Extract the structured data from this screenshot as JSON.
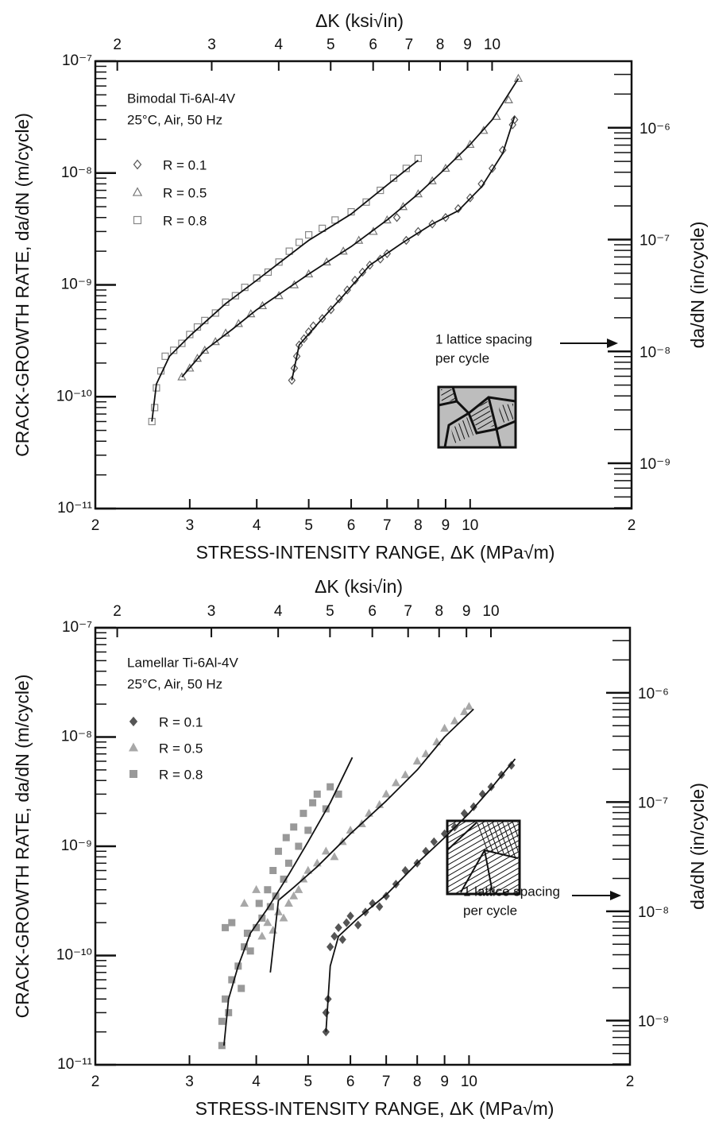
{
  "chart_data": [
    {
      "type": "scatter",
      "top_axis_label": "ΔK (ksi√in)",
      "xlabel": "STRESS-INTENSITY RANGE, ΔK (MPa√m)",
      "ylabel": "CRACK-GROWTH RATE, da/dN (m/cycle)",
      "y2label": "da/dN (in/cycle)",
      "xscale": "log",
      "yscale": "log",
      "xlim": [
        2,
        20
      ],
      "xticks": [
        2,
        3,
        4,
        5,
        6,
        7,
        8,
        9,
        10,
        {
          "value": 20,
          "label": "2"
        }
      ],
      "x2lim": [
        1.82,
        18.2
      ],
      "x2ticks": [
        2,
        3,
        4,
        5,
        6,
        7,
        8,
        9,
        10
      ],
      "ylim": [
        1e-11,
        1e-07
      ],
      "yticks": [
        {
          "value": 1e-11,
          "label": "10⁻¹¹"
        },
        {
          "value": 1e-10,
          "label": "10⁻¹⁰"
        },
        {
          "value": 1e-09,
          "label": "10⁻⁹"
        },
        {
          "value": 1e-08,
          "label": "10⁻⁸"
        },
        {
          "value": 1e-07,
          "label": "10⁻⁷"
        }
      ],
      "y2lim": [
        3.937e-10,
        3.937e-06
      ],
      "y2ticks": [
        {
          "value": 1e-09,
          "label": "10⁻⁹"
        },
        {
          "value": 1e-08,
          "label": "10⁻⁸"
        },
        {
          "value": 1e-07,
          "label": "10⁻⁷"
        },
        {
          "value": 1e-06,
          "label": "10⁻⁶"
        }
      ],
      "annotations": [
        "Bimodal Ti-6Al-4V",
        "25°C, Air, 50 Hz"
      ],
      "lattice_note": [
        "1 lattice spacing",
        "per cycle"
      ],
      "legend": "upper left",
      "series": [
        {
          "name": "R = 0.1",
          "marker": "diamond",
          "filled": false,
          "color": "#555555",
          "x": [
            4.65,
            4.7,
            4.75,
            4.8,
            4.9,
            5.0,
            5.1,
            5.3,
            5.5,
            5.7,
            5.9,
            6.1,
            6.3,
            6.5,
            6.8,
            7.0,
            7.3,
            7.6,
            8,
            8.5,
            9,
            9.5,
            10,
            10.5,
            11,
            11.5,
            12,
            12.1
          ],
          "values": [
            1.4e-10,
            1.8e-10,
            2.3e-10,
            2.9e-10,
            3.3e-10,
            3.8e-10,
            4.3e-10,
            5e-10,
            6e-10,
            7.5e-10,
            9e-10,
            1.1e-09,
            1.3e-09,
            1.5e-09,
            1.7e-09,
            1.9e-09,
            4e-09,
            2.5e-09,
            3e-09,
            3.5e-09,
            4e-09,
            4.8e-09,
            6e-09,
            8e-09,
            1.1e-08,
            1.6e-08,
            2.7e-08,
            3e-08
          ],
          "fit_x": [
            4.65,
            4.8,
            5.2,
            5.8,
            6.5,
            7.5,
            8.5,
            9.5,
            10.5,
            11.5,
            12.1
          ],
          "fit_values": [
            1.4e-10,
            2.9e-10,
            4.5e-10,
            8e-10,
            1.5e-09,
            2.4e-09,
            3.5e-09,
            4.6e-09,
            7.5e-09,
            1.5e-08,
            3.2e-08
          ]
        },
        {
          "name": "R = 0.5",
          "marker": "triangle",
          "filled": false,
          "color": "#777777",
          "x": [
            2.9,
            3.0,
            3.1,
            3.2,
            3.35,
            3.5,
            3.7,
            3.9,
            4.1,
            4.4,
            4.7,
            5.0,
            5.4,
            5.8,
            6.2,
            6.6,
            7.0,
            7.5,
            8,
            8.5,
            9,
            9.5,
            10,
            10.6,
            11.2,
            11.8,
            12.3
          ],
          "values": [
            1.5e-10,
            1.8e-10,
            2.2e-10,
            2.6e-10,
            3.1e-10,
            3.7e-10,
            4.5e-10,
            5.5e-10,
            6.5e-10,
            8e-10,
            1e-09,
            1.25e-09,
            1.6e-09,
            2e-09,
            2.5e-09,
            3e-09,
            3.8e-09,
            5e-09,
            6.5e-09,
            8.5e-09,
            1.1e-08,
            1.4e-08,
            1.8e-08,
            2.4e-08,
            3.2e-08,
            4.5e-08,
            7e-08
          ],
          "fit_x": [
            2.9,
            3.2,
            3.6,
            4,
            5,
            6,
            7,
            8,
            9,
            10,
            11,
            12.3
          ],
          "fit_values": [
            1.5e-10,
            2.6e-10,
            4e-10,
            6e-10,
            1.25e-09,
            2.2e-09,
            3.8e-09,
            6.5e-09,
            1.1e-08,
            1.8e-08,
            3e-08,
            7e-08
          ]
        },
        {
          "name": "R = 0.8",
          "marker": "square",
          "filled": false,
          "color": "#888888",
          "x": [
            2.55,
            2.58,
            2.6,
            2.65,
            2.7,
            2.8,
            2.9,
            3.0,
            3.1,
            3.2,
            3.35,
            3.5,
            3.65,
            3.8,
            4.0,
            4.2,
            4.4,
            4.6,
            4.8,
            5.0,
            5.3,
            5.6,
            6.0,
            6.4,
            6.8,
            7.2,
            7.6,
            8.0
          ],
          "values": [
            6e-11,
            8e-11,
            1.2e-10,
            1.7e-10,
            2.3e-10,
            2.6e-10,
            3e-10,
            3.6e-10,
            4.2e-10,
            4.8e-10,
            5.6e-10,
            7e-10,
            8e-10,
            9.5e-10,
            1.15e-09,
            1.3e-09,
            1.6e-09,
            2e-09,
            2.4e-09,
            2.8e-09,
            3.2e-09,
            3.8e-09,
            4.5e-09,
            5.5e-09,
            7e-09,
            9e-09,
            1.1e-08,
            1.35e-08
          ],
          "fit_x": [
            2.55,
            2.6,
            2.75,
            3,
            3.5,
            4,
            4.5,
            5,
            6,
            7,
            8
          ],
          "fit_values": [
            6e-11,
            1.3e-10,
            2.3e-10,
            3.5e-10,
            6.8e-10,
            1.1e-09,
            1.7e-09,
            2.5e-09,
            4.3e-09,
            7.8e-09,
            1.3e-08
          ]
        }
      ]
    },
    {
      "type": "scatter",
      "top_axis_label": "ΔK (ksi√in)",
      "xlabel": "STRESS-INTENSITY RANGE, ΔK (MPa√m)",
      "ylabel": "CRACK-GROWTH RATE, da/dN (m/cycle)",
      "y2label": "da/dN (in/cycle)",
      "xscale": "log",
      "yscale": "log",
      "xlim": [
        2,
        20
      ],
      "xticks": [
        2,
        3,
        4,
        5,
        6,
        7,
        8,
        9,
        10,
        {
          "value": 20,
          "label": "2"
        }
      ],
      "x2lim": [
        1.82,
        18.2
      ],
      "x2ticks": [
        2,
        3,
        4,
        5,
        6,
        7,
        8,
        9,
        10
      ],
      "ylim": [
        1e-11,
        1e-07
      ],
      "yticks": [
        {
          "value": 1e-11,
          "label": "10⁻¹¹"
        },
        {
          "value": 1e-10,
          "label": "10⁻¹⁰"
        },
        {
          "value": 1e-09,
          "label": "10⁻⁹"
        },
        {
          "value": 1e-08,
          "label": "10⁻⁸"
        },
        {
          "value": 1e-07,
          "label": "10⁻⁷"
        }
      ],
      "y2lim": [
        3.937e-10,
        3.937e-06
      ],
      "y2ticks": [
        {
          "value": 1e-09,
          "label": "10⁻⁹"
        },
        {
          "value": 1e-08,
          "label": "10⁻⁸"
        },
        {
          "value": 1e-07,
          "label": "10⁻⁷"
        },
        {
          "value": 1e-06,
          "label": "10⁻⁶"
        }
      ],
      "annotations": [
        "Lamellar Ti-6Al-4V",
        "25°C, Air, 50 Hz"
      ],
      "lattice_note": [
        "1 lattice spacing",
        "per cycle"
      ],
      "legend": "upper left",
      "series": [
        {
          "name": "R = 0.1",
          "marker": "diamond",
          "filled": true,
          "color": "#555555",
          "x": [
            5.4,
            5.4,
            5.45,
            5.5,
            5.6,
            5.7,
            5.8,
            5.9,
            6.0,
            6.2,
            6.4,
            6.6,
            6.8,
            7.0,
            7.3,
            7.6,
            8.0,
            8.3,
            8.6,
            9.0,
            9.4,
            9.8,
            10.2,
            10.6,
            11.0,
            11.5,
            12.0
          ],
          "values": [
            2e-11,
            3e-11,
            4e-11,
            1.2e-10,
            1.5e-10,
            1.8e-10,
            1.4e-10,
            2e-10,
            2.3e-10,
            1.9e-10,
            2.5e-10,
            3e-10,
            2.8e-10,
            3.5e-10,
            4.5e-10,
            6e-10,
            7e-10,
            9e-10,
            1.1e-09,
            1.3e-09,
            1.5e-09,
            2e-09,
            2.3e-09,
            3e-09,
            3.5e-09,
            4.5e-09,
            5.5e-09
          ],
          "fit_x": [
            5.4,
            5.5,
            5.7,
            6.2,
            7,
            8,
            9,
            10,
            11,
            12.2
          ],
          "fit_values": [
            2e-11,
            8e-11,
            1.5e-10,
            2.2e-10,
            3.6e-10,
            7e-10,
            1.2e-09,
            2e-09,
            3.4e-09,
            6.3e-09
          ]
        },
        {
          "name": "R = 0.5",
          "marker": "triangle",
          "filled": true,
          "color": "#a8a8a8",
          "x": [
            3.8,
            4.0,
            4.1,
            4.2,
            4.3,
            4.4,
            4.5,
            4.6,
            4.7,
            4.8,
            4.9,
            5.0,
            5.2,
            5.4,
            5.6,
            5.8,
            6.0,
            6.3,
            6.5,
            6.8,
            7.0,
            7.3,
            7.6,
            8.0,
            8.3,
            8.7,
            9.0,
            9.4,
            9.8,
            10.0
          ],
          "values": [
            3e-10,
            4e-10,
            1.5e-10,
            2e-10,
            1.7e-10,
            2.5e-10,
            2.2e-10,
            3e-10,
            3.5e-10,
            4e-10,
            5e-10,
            6e-10,
            7e-10,
            9e-10,
            8e-10,
            1.1e-09,
            1.4e-09,
            1.6e-09,
            2e-09,
            2.4e-09,
            3e-09,
            3.8e-09,
            4.5e-09,
            6e-09,
            7e-09,
            9e-09,
            1.2e-08,
            1.4e-08,
            1.7e-08,
            1.9e-08
          ],
          "fit_x": [
            4.25,
            4.4,
            4.7,
            5.2,
            6,
            7,
            8,
            9,
            10.2
          ],
          "fit_values": [
            7e-11,
            3.2e-10,
            4.2e-10,
            6.5e-10,
            1.3e-09,
            2.6e-09,
            5e-09,
            1e-08,
            1.8e-08
          ]
        },
        {
          "name": "R = 0.8",
          "marker": "square",
          "filled": true,
          "color": "#999999",
          "x": [
            3.45,
            3.45,
            3.5,
            3.55,
            3.6,
            3.7,
            3.75,
            3.8,
            3.85,
            3.9,
            4.0,
            4.05,
            4.1,
            3.5,
            3.6,
            4.2,
            4.25,
            4.3,
            4.35,
            4.4,
            4.5,
            4.55,
            4.6,
            4.7,
            4.8,
            4.9,
            5.0,
            5.1,
            5.2,
            5.4,
            5.5,
            5.7
          ],
          "values": [
            1.5e-11,
            2.5e-11,
            4e-11,
            3e-11,
            6e-11,
            8e-11,
            5e-11,
            1.2e-10,
            1.6e-10,
            1.1e-10,
            1.8e-10,
            3e-10,
            2.2e-10,
            1.8e-10,
            2e-10,
            4e-10,
            2.8e-10,
            6e-10,
            3.5e-10,
            9e-10,
            5e-10,
            1.2e-09,
            7e-10,
            1.5e-09,
            1e-09,
            2e-09,
            1.4e-09,
            2.5e-09,
            3e-09,
            2.2e-09,
            3.5e-09,
            3e-09
          ],
          "fit_x": [
            3.48,
            3.55,
            3.7,
            3.9,
            4.2,
            4.6,
            5,
            5.5,
            6.05
          ],
          "fit_values": [
            1.5e-11,
            4e-11,
            8e-11,
            1.6e-10,
            2.7e-10,
            5.5e-10,
            1.1e-09,
            2.5e-09,
            6.5e-09
          ]
        }
      ]
    }
  ]
}
